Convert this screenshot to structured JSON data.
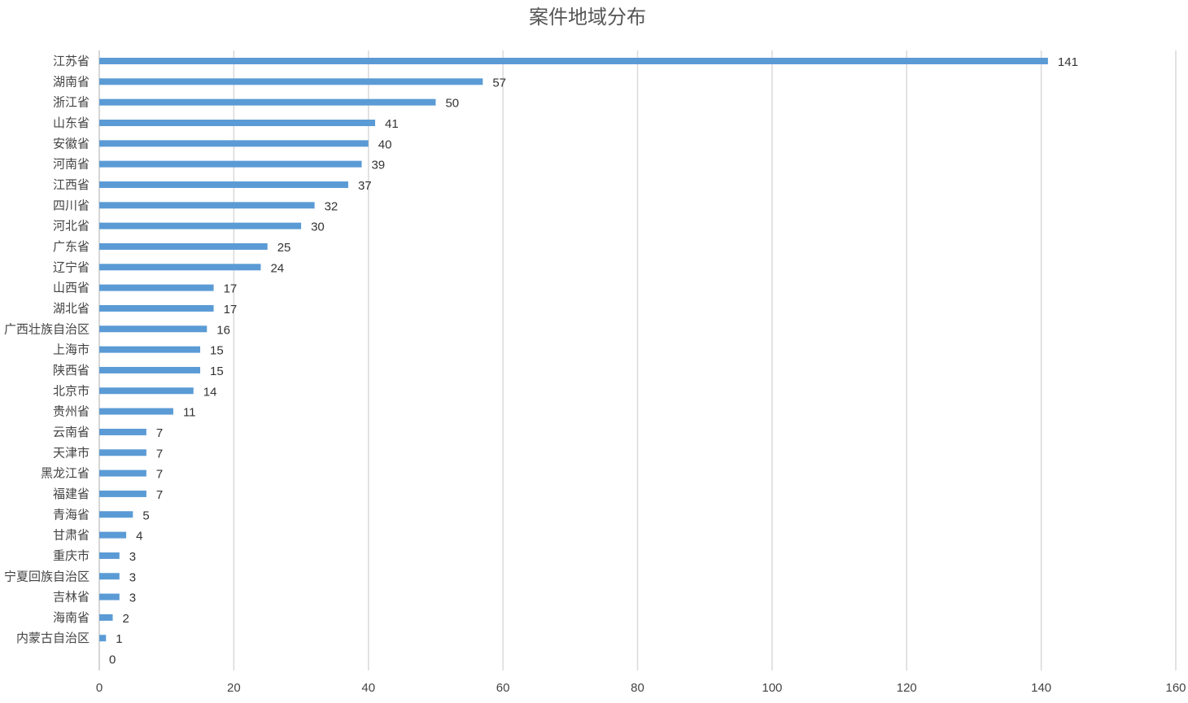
{
  "chart_data": {
    "type": "bar",
    "orientation": "horizontal",
    "title": "案件地域分布",
    "xlabel": "",
    "ylabel": "",
    "xlim": [
      0,
      160
    ],
    "x_ticks": [
      0,
      20,
      40,
      60,
      80,
      100,
      120,
      140,
      160
    ],
    "grid": true,
    "legend": "none",
    "bar_color": "#5b9bd5",
    "categories": [
      "江苏省",
      "湖南省",
      "浙江省",
      "山东省",
      "安徽省",
      "河南省",
      "江西省",
      "四川省",
      "河北省",
      "广东省",
      "辽宁省",
      "山西省",
      "湖北省",
      "广西壮族自治区",
      "上海市",
      "陕西省",
      "北京市",
      "贵州省",
      "云南省",
      "天津市",
      "黑龙江省",
      "福建省",
      "青海省",
      "甘肃省",
      "重庆市",
      "宁夏回族自治区",
      "吉林省",
      "海南省",
      "内蒙古自治区",
      ""
    ],
    "values": [
      141,
      57,
      50,
      41,
      40,
      39,
      37,
      32,
      30,
      25,
      24,
      17,
      17,
      16,
      15,
      15,
      14,
      11,
      7,
      7,
      7,
      7,
      5,
      4,
      3,
      3,
      3,
      2,
      1,
      0
    ]
  }
}
